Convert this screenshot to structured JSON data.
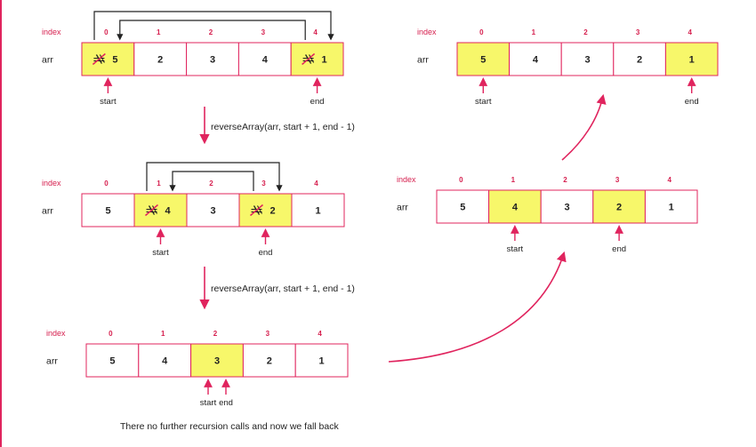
{
  "labels": {
    "index": "index",
    "arr": "arr",
    "start": "start",
    "end": "end"
  },
  "colors": {
    "accent": "#e0245e",
    "highlight": "#f7f76a",
    "border": "#e0245e",
    "line": "#222222"
  },
  "arrays": [
    {
      "id": "step-1",
      "values": [
        "5",
        "2",
        "3",
        "4",
        "1"
      ],
      "indices": [
        "0",
        "1",
        "2",
        "3",
        "4"
      ],
      "highlight": [
        0,
        4
      ],
      "crossed_out": [
        0,
        4
      ],
      "start": 0,
      "end": 4,
      "swap_arrow": true
    },
    {
      "id": "step-2",
      "values": [
        "5",
        "4",
        "3",
        "2",
        "1"
      ],
      "indices": [
        "0",
        "1",
        "2",
        "3",
        "4"
      ],
      "highlight": [
        1,
        3
      ],
      "crossed_out": [
        1,
        3
      ],
      "start": 1,
      "end": 3,
      "swap_arrow": true
    },
    {
      "id": "step-3",
      "values": [
        "5",
        "4",
        "3",
        "2",
        "1"
      ],
      "indices": [
        "0",
        "1",
        "2",
        "3",
        "4"
      ],
      "highlight": [
        2
      ],
      "crossed_out": [],
      "start": 2,
      "end": 2,
      "swap_arrow": false
    },
    {
      "id": "return-1",
      "values": [
        "5",
        "4",
        "3",
        "2",
        "1"
      ],
      "indices": [
        "0",
        "1",
        "2",
        "3",
        "4"
      ],
      "highlight": [
        1,
        3
      ],
      "crossed_out": [],
      "start": 1,
      "end": 3,
      "swap_arrow": false
    },
    {
      "id": "return-2",
      "values": [
        "5",
        "4",
        "3",
        "2",
        "1"
      ],
      "indices": [
        "0",
        "1",
        "2",
        "3",
        "4"
      ],
      "highlight": [
        0,
        4
      ],
      "crossed_out": [],
      "start": 0,
      "end": 4,
      "swap_arrow": false
    }
  ],
  "recursive_calls": [
    "reverseArray(arr, start + 1, end - 1)",
    "reverseArray(arr, start + 1, end - 1)"
  ],
  "footer": "There no further recursion calls and now we fall back"
}
